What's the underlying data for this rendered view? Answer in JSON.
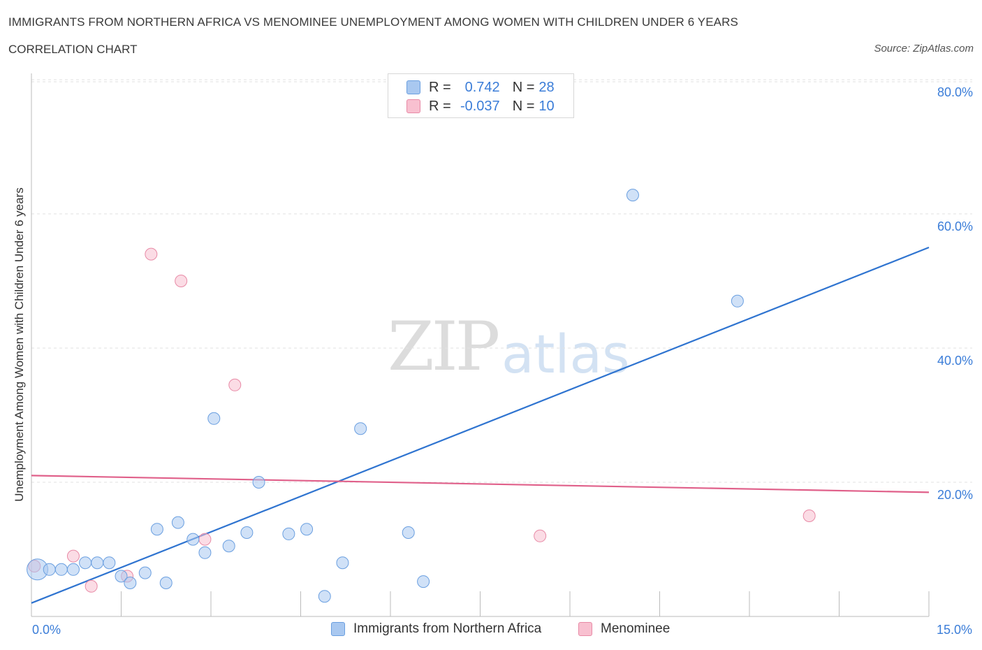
{
  "title": "IMMIGRANTS FROM NORTHERN AFRICA VS MENOMINEE UNEMPLOYMENT AMONG WOMEN WITH CHILDREN UNDER 6 YEARS",
  "subtitle": "CORRELATION CHART",
  "source": "Source: ZipAtlas.com",
  "watermark": {
    "zip": "ZIP",
    "atlas": "atlas"
  },
  "legend": {
    "rows": [
      {
        "r_label": "R =",
        "r_value": "0.742",
        "n_label": "N =",
        "n_value": "28",
        "color": "#a9c8f0",
        "border": "#6a9fe0"
      },
      {
        "r_label": "R =",
        "r_value": "-0.037",
        "n_label": "N =",
        "n_value": "10",
        "color": "#f8c0d0",
        "border": "#e88aa6"
      }
    ]
  },
  "bottom_legend": [
    {
      "label": "Immigrants from Northern Africa",
      "color": "#a9c8f0",
      "border": "#6a9fe0"
    },
    {
      "label": "Menominee",
      "color": "#f8c0d0",
      "border": "#e88aa6"
    }
  ],
  "chart_data": {
    "type": "scatter",
    "title": "IMMIGRANTS FROM NORTHERN AFRICA VS MENOMINEE UNEMPLOYMENT AMONG WOMEN WITH CHILDREN UNDER 6 YEARS",
    "xlabel": "",
    "ylabel": "Unemployment Among Women with Children Under 6 years",
    "xlim": [
      0,
      15
    ],
    "ylim": [
      0,
      80
    ],
    "x_tick_labels": [
      "0.0%",
      "15.0%"
    ],
    "y_ticks": [
      20,
      40,
      60,
      80
    ],
    "y_tick_labels": [
      "20.0%",
      "40.0%",
      "60.0%",
      "80.0%"
    ],
    "grid": true,
    "series": [
      {
        "name": "Immigrants from Northern Africa",
        "color": "#a9c8f0",
        "stroke": "#6a9fe0",
        "line_color": "#2f74d0",
        "trend": {
          "x0": 0.0,
          "y0": 2.0,
          "x1": 15.0,
          "y1": 55.0
        },
        "points": [
          {
            "x": 0.1,
            "y": 7.0,
            "big": true
          },
          {
            "x": 0.3,
            "y": 7.0
          },
          {
            "x": 0.5,
            "y": 7.0
          },
          {
            "x": 0.7,
            "y": 7.0
          },
          {
            "x": 0.9,
            "y": 8.0
          },
          {
            "x": 1.1,
            "y": 8.0
          },
          {
            "x": 1.3,
            "y": 8.0
          },
          {
            "x": 1.5,
            "y": 6.0
          },
          {
            "x": 1.65,
            "y": 5.0
          },
          {
            "x": 1.9,
            "y": 6.5
          },
          {
            "x": 2.1,
            "y": 13.0
          },
          {
            "x": 2.25,
            "y": 5.0
          },
          {
            "x": 2.45,
            "y": 14.0
          },
          {
            "x": 2.7,
            "y": 11.5
          },
          {
            "x": 2.9,
            "y": 9.5
          },
          {
            "x": 3.05,
            "y": 29.5
          },
          {
            "x": 3.3,
            "y": 10.5
          },
          {
            "x": 3.6,
            "y": 12.5
          },
          {
            "x": 3.8,
            "y": 20.0
          },
          {
            "x": 4.3,
            "y": 12.3
          },
          {
            "x": 4.6,
            "y": 13.0
          },
          {
            "x": 4.9,
            "y": 3.0
          },
          {
            "x": 5.2,
            "y": 8.0
          },
          {
            "x": 5.5,
            "y": 28.0
          },
          {
            "x": 6.3,
            "y": 12.5
          },
          {
            "x": 6.55,
            "y": 5.2
          },
          {
            "x": 10.05,
            "y": 62.8
          },
          {
            "x": 11.8,
            "y": 47.0
          }
        ]
      },
      {
        "name": "Menominee",
        "color": "#f8c0d0",
        "stroke": "#e88aa6",
        "line_color": "#e0608a",
        "trend": {
          "x0": 0.0,
          "y0": 21.0,
          "x1": 15.0,
          "y1": 18.5
        },
        "points": [
          {
            "x": 0.05,
            "y": 7.5
          },
          {
            "x": 0.7,
            "y": 9.0
          },
          {
            "x": 1.0,
            "y": 4.5
          },
          {
            "x": 1.6,
            "y": 6.0
          },
          {
            "x": 2.0,
            "y": 54.0
          },
          {
            "x": 2.5,
            "y": 50.0
          },
          {
            "x": 2.9,
            "y": 11.5
          },
          {
            "x": 3.4,
            "y": 34.5
          },
          {
            "x": 8.5,
            "y": 12.0
          },
          {
            "x": 13.0,
            "y": 15.0
          }
        ]
      }
    ]
  }
}
